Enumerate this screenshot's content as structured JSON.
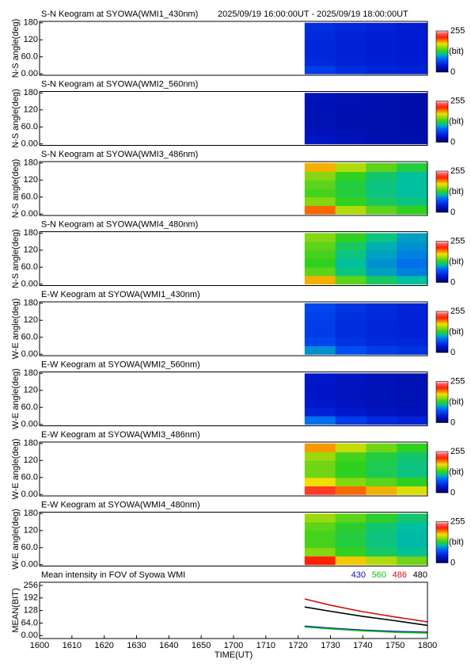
{
  "chart_data": [
    {
      "type": "heatmap",
      "title": "S-N Keogram at SYOWA(WMI1_430nm)",
      "subtitle": "2025/09/19 16:00:00UT - 2025/09/19 18:00:00UT",
      "ylabel": "N-S angle(deg)",
      "xlim": [
        0,
        120
      ],
      "ylim": [
        -5,
        185
      ],
      "yticks": [
        {
          "value": 0,
          "label": "0.00"
        },
        {
          "value": 60,
          "label": "60.0"
        },
        120,
        180
      ],
      "xbins": [
        82,
        91.5,
        101,
        110.5,
        120
      ],
      "ybins": [
        0,
        30,
        60,
        90,
        120,
        150,
        180
      ],
      "z": [
        [
          60,
          52,
          48,
          45
        ],
        [
          50,
          46,
          44,
          42
        ],
        [
          48,
          45,
          43,
          40
        ],
        [
          48,
          45,
          43,
          40
        ],
        [
          50,
          46,
          44,
          42
        ],
        [
          52,
          48,
          45,
          42
        ]
      ],
      "zlim": [
        0,
        255
      ],
      "zticks": [
        0,
        255
      ],
      "zlabel": "(bit)",
      "colorscale": [
        [
          0,
          "#00006e"
        ],
        [
          40,
          "#0018d0"
        ],
        [
          80,
          "#0060ff"
        ],
        [
          110,
          "#00c0a0"
        ],
        [
          130,
          "#30d020"
        ],
        [
          175,
          "#f0e000"
        ],
        [
          215,
          "#ff2000"
        ],
        [
          240,
          "#ff6060"
        ],
        [
          255,
          "#ffe0e0"
        ]
      ]
    },
    {
      "type": "heatmap",
      "title": "S-N Keogram at SYOWA(WMI2_560nm)",
      "ylabel": "N-S angle(deg)",
      "xlim": [
        0,
        120
      ],
      "ylim": [
        -5,
        185
      ],
      "yticks": [
        {
          "value": 0,
          "label": "0.00"
        },
        {
          "value": 60,
          "label": "60.0"
        },
        120,
        180
      ],
      "xbins": [
        82,
        91.5,
        101,
        110.5,
        120
      ],
      "ybins": [
        0,
        30,
        60,
        90,
        120,
        150,
        180
      ],
      "z": [
        [
          35,
          30,
          28,
          26
        ],
        [
          30,
          28,
          26,
          25
        ],
        [
          28,
          27,
          26,
          25
        ],
        [
          28,
          27,
          26,
          25
        ],
        [
          28,
          27,
          26,
          25
        ],
        [
          30,
          28,
          26,
          25
        ]
      ],
      "zlim": [
        0,
        255
      ],
      "zticks": [
        0,
        255
      ],
      "zlabel": "(bit)",
      "colorscale": [
        [
          0,
          "#00006e"
        ],
        [
          40,
          "#0018d0"
        ],
        [
          80,
          "#0060ff"
        ],
        [
          110,
          "#00c0a0"
        ],
        [
          130,
          "#30d020"
        ],
        [
          175,
          "#f0e000"
        ],
        [
          215,
          "#ff2000"
        ],
        [
          240,
          "#ff6060"
        ],
        [
          255,
          "#ffe0e0"
        ]
      ]
    },
    {
      "type": "heatmap",
      "title": "S-N Keogram at SYOWA(WMI3_486nm)",
      "ylabel": "N-S angle(deg)",
      "xlim": [
        0,
        120
      ],
      "ylim": [
        -5,
        185
      ],
      "yticks": [
        {
          "value": 0,
          "label": "0.00"
        },
        {
          "value": 60,
          "label": "60.0"
        },
        120,
        180
      ],
      "xbins": [
        82,
        91.5,
        101,
        110.5,
        120
      ],
      "ybins": [
        0,
        30,
        60,
        90,
        120,
        150,
        180
      ],
      "z": [
        [
          200,
          160,
          140,
          130
        ],
        [
          150,
          130,
          120,
          115
        ],
        [
          135,
          125,
          115,
          110
        ],
        [
          140,
          125,
          115,
          110
        ],
        [
          150,
          130,
          118,
          110
        ],
        [
          185,
          160,
          140,
          125
        ]
      ],
      "zlim": [
        0,
        255
      ],
      "zticks": [
        0,
        255
      ],
      "zlabel": "(bit)",
      "colorscale": [
        [
          0,
          "#00006e"
        ],
        [
          40,
          "#0018d0"
        ],
        [
          80,
          "#0060ff"
        ],
        [
          110,
          "#00c0a0"
        ],
        [
          130,
          "#30d020"
        ],
        [
          175,
          "#f0e000"
        ],
        [
          215,
          "#ff2000"
        ],
        [
          240,
          "#ff6060"
        ],
        [
          255,
          "#ffe0e0"
        ]
      ]
    },
    {
      "type": "heatmap",
      "title": "S-N Keogram at SYOWA(WMI4_480nm)",
      "ylabel": "N-S angle(deg)",
      "xlim": [
        0,
        120
      ],
      "ylim": [
        -5,
        185
      ],
      "yticks": [
        {
          "value": 0,
          "label": "0.00"
        },
        {
          "value": 60,
          "label": "60.0"
        },
        120,
        180
      ],
      "xbins": [
        82,
        91.5,
        101,
        110.5,
        120
      ],
      "ybins": [
        0,
        30,
        60,
        90,
        120,
        150,
        180
      ],
      "z": [
        [
          185,
          140,
          120,
          110
        ],
        [
          140,
          115,
          100,
          90
        ],
        [
          130,
          110,
          95,
          85
        ],
        [
          135,
          115,
          100,
          90
        ],
        [
          140,
          120,
          105,
          95
        ],
        [
          150,
          130,
          115,
          100
        ]
      ],
      "zlim": [
        0,
        255
      ],
      "zticks": [
        0,
        255
      ],
      "zlabel": "(bit)",
      "colorscale": [
        [
          0,
          "#00006e"
        ],
        [
          40,
          "#0018d0"
        ],
        [
          80,
          "#0060ff"
        ],
        [
          110,
          "#00c0a0"
        ],
        [
          130,
          "#30d020"
        ],
        [
          175,
          "#f0e000"
        ],
        [
          215,
          "#ff2000"
        ],
        [
          240,
          "#ff6060"
        ],
        [
          255,
          "#ffe0e0"
        ]
      ]
    },
    {
      "type": "heatmap",
      "title": "E-W Keogram at SYOWA(WMI1_430nm)",
      "ylabel": "W-E angle(deg)",
      "xlim": [
        0,
        120
      ],
      "ylim": [
        -5,
        185
      ],
      "yticks": [
        {
          "value": 0,
          "label": "0.00"
        },
        {
          "value": 60,
          "label": "60.0"
        },
        120,
        180
      ],
      "xbins": [
        82,
        91.5,
        101,
        110.5,
        120
      ],
      "ybins": [
        0,
        30,
        60,
        90,
        120,
        150,
        180
      ],
      "z": [
        [
          95,
          70,
          60,
          55
        ],
        [
          65,
          55,
          50,
          48
        ],
        [
          60,
          52,
          48,
          45
        ],
        [
          60,
          52,
          48,
          45
        ],
        [
          62,
          54,
          50,
          46
        ],
        [
          65,
          56,
          50,
          46
        ]
      ],
      "zlim": [
        0,
        255
      ],
      "zticks": [
        0,
        255
      ],
      "zlabel": "(bit)",
      "colorscale": [
        [
          0,
          "#00006e"
        ],
        [
          40,
          "#0018d0"
        ],
        [
          80,
          "#0060ff"
        ],
        [
          110,
          "#00c0a0"
        ],
        [
          130,
          "#30d020"
        ],
        [
          175,
          "#f0e000"
        ],
        [
          215,
          "#ff2000"
        ],
        [
          240,
          "#ff6060"
        ],
        [
          255,
          "#ffe0e0"
        ]
      ]
    },
    {
      "type": "heatmap",
      "title": "E-W Keogram at SYOWA(WMI2_560nm)",
      "ylabel": "W-E angle(deg)",
      "xlim": [
        0,
        120
      ],
      "ylim": [
        -5,
        185
      ],
      "yticks": [
        {
          "value": 0,
          "label": "0.00"
        },
        {
          "value": 60,
          "label": "60.0"
        },
        120,
        180
      ],
      "xbins": [
        82,
        91.5,
        101,
        110.5,
        120
      ],
      "ybins": [
        0,
        30,
        60,
        90,
        120,
        150,
        180
      ],
      "z": [
        [
          85,
          60,
          50,
          45
        ],
        [
          45,
          38,
          34,
          30
        ],
        [
          38,
          34,
          30,
          28
        ],
        [
          36,
          32,
          30,
          28
        ],
        [
          36,
          32,
          30,
          28
        ],
        [
          38,
          34,
          30,
          28
        ]
      ],
      "zlim": [
        0,
        255
      ],
      "zticks": [
        0,
        255
      ],
      "zlabel": "(bit)",
      "colorscale": [
        [
          0,
          "#00006e"
        ],
        [
          40,
          "#0018d0"
        ],
        [
          80,
          "#0060ff"
        ],
        [
          110,
          "#00c0a0"
        ],
        [
          130,
          "#30d020"
        ],
        [
          175,
          "#f0e000"
        ],
        [
          215,
          "#ff2000"
        ],
        [
          240,
          "#ff6060"
        ],
        [
          255,
          "#ffe0e0"
        ]
      ]
    },
    {
      "type": "heatmap",
      "title": "E-W Keogram at SYOWA(WMI3_486nm)",
      "ylabel": "W-E angle(deg)",
      "xlim": [
        0,
        120
      ],
      "ylim": [
        -5,
        185
      ],
      "yticks": [
        {
          "value": 0,
          "label": "0.00"
        },
        {
          "value": 60,
          "label": "60.0"
        },
        120,
        180
      ],
      "xbins": [
        82,
        91.5,
        101,
        110.5,
        120
      ],
      "ybins": [
        0,
        30,
        60,
        90,
        120,
        150,
        180
      ],
      "z": [
        [
          225,
          200,
          185,
          170
        ],
        [
          175,
          150,
          140,
          130
        ],
        [
          145,
          130,
          122,
          115
        ],
        [
          145,
          130,
          122,
          115
        ],
        [
          155,
          135,
          125,
          118
        ],
        [
          190,
          165,
          145,
          130
        ]
      ],
      "zlim": [
        0,
        255
      ],
      "zticks": [
        0,
        255
      ],
      "zlabel": "(bit)",
      "colorscale": [
        [
          0,
          "#00006e"
        ],
        [
          40,
          "#0018d0"
        ],
        [
          80,
          "#0060ff"
        ],
        [
          110,
          "#00c0a0"
        ],
        [
          130,
          "#30d020"
        ],
        [
          175,
          "#f0e000"
        ],
        [
          215,
          "#ff2000"
        ],
        [
          240,
          "#ff6060"
        ],
        [
          255,
          "#ffe0e0"
        ]
      ]
    },
    {
      "type": "heatmap",
      "title": "E-W Keogram at SYOWA(WMI4_480nm)",
      "ylabel": "W-E angle(deg)",
      "xlim": [
        0,
        120
      ],
      "ylim": [
        -5,
        185
      ],
      "yticks": [
        {
          "value": 0,
          "label": "0.00"
        },
        {
          "value": 60,
          "label": "60.0"
        },
        120,
        180
      ],
      "xbins": [
        82,
        91.5,
        101,
        110.5,
        120
      ],
      "ybins": [
        0,
        30,
        60,
        90,
        120,
        150,
        180
      ],
      "z": [
        [
          215,
          180,
          160,
          145
        ],
        [
          150,
          130,
          120,
          112
        ],
        [
          135,
          125,
          115,
          108
        ],
        [
          135,
          125,
          115,
          108
        ],
        [
          140,
          128,
          118,
          110
        ],
        [
          155,
          140,
          128,
          118
        ]
      ],
      "zlim": [
        0,
        255
      ],
      "zticks": [
        0,
        255
      ],
      "zlabel": "(bit)",
      "colorscale": [
        [
          0,
          "#00006e"
        ],
        [
          40,
          "#0018d0"
        ],
        [
          80,
          "#0060ff"
        ],
        [
          110,
          "#00c0a0"
        ],
        [
          130,
          "#30d020"
        ],
        [
          175,
          "#f0e000"
        ],
        [
          215,
          "#ff2000"
        ],
        [
          240,
          "#ff6060"
        ],
        [
          255,
          "#ffe0e0"
        ]
      ]
    },
    {
      "type": "line",
      "title": "Mean intensity in FOV of Syowa WMI",
      "ylabel": "MEAN(BIT)",
      "xlabel": "TIME(UT)",
      "xlim": [
        0,
        120
      ],
      "ylim": [
        -15,
        272
      ],
      "xticks": [
        {
          "value": 0,
          "label": "1600"
        },
        {
          "value": 10,
          "label": "1610"
        },
        {
          "value": 20,
          "label": "1620"
        },
        {
          "value": 30,
          "label": "1630"
        },
        {
          "value": 40,
          "label": "1640"
        },
        {
          "value": 50,
          "label": "1650"
        },
        {
          "value": 60,
          "label": "1700"
        },
        {
          "value": 70,
          "label": "1710"
        },
        {
          "value": 80,
          "label": "1720"
        },
        {
          "value": 90,
          "label": "1730"
        },
        {
          "value": 100,
          "label": "1740"
        },
        {
          "value": 110,
          "label": "1750"
        },
        {
          "value": 120,
          "label": "1800"
        }
      ],
      "yticks": [
        {
          "value": 0,
          "label": "0.00"
        },
        {
          "value": 64,
          "label": "64.0"
        },
        128,
        192,
        256
      ],
      "x": [
        82,
        90,
        100,
        110,
        120
      ],
      "series": [
        {
          "name": "430",
          "color": "#1010c0",
          "values": [
            48,
            38,
            28,
            21,
            17
          ]
        },
        {
          "name": "560",
          "color": "#10c010",
          "values": [
            44,
            34,
            24,
            17,
            13
          ]
        },
        {
          "name": "486",
          "color": "#d01010",
          "values": [
            187,
            155,
            122,
            95,
            70
          ]
        },
        {
          "name": "480",
          "color": "#000000",
          "values": [
            146,
            124,
            98,
            76,
            52
          ]
        }
      ]
    }
  ]
}
